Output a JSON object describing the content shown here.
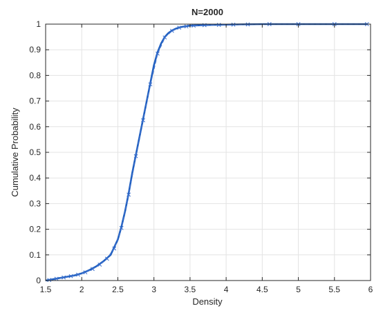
{
  "chart_data": {
    "type": "line",
    "title": "N=2000",
    "xlabel": "Density",
    "ylabel": "Cumulative Probability",
    "xlim": [
      1.5,
      6
    ],
    "ylim": [
      0,
      1
    ],
    "xticks": [
      1.5,
      2,
      2.5,
      3,
      3.5,
      4,
      4.5,
      5,
      5.5,
      6
    ],
    "xtick_labels": [
      "1.5",
      "2",
      "2.5",
      "3",
      "3.5",
      "4",
      "4.5",
      "5",
      "5.5",
      "6"
    ],
    "yticks": [
      0,
      0.1,
      0.2,
      0.3,
      0.4,
      0.5,
      0.6,
      0.7,
      0.8,
      0.9,
      1
    ],
    "ytick_labels": [
      "0",
      "0.1",
      "0.2",
      "0.3",
      "0.4",
      "0.5",
      "0.6",
      "0.7",
      "0.8",
      "0.9",
      "1"
    ],
    "grid": true,
    "legend": "none",
    "colors": {
      "line": "#1f5fbf",
      "marker": "#3a6fcc",
      "grid": "#e3e3e3",
      "axis": "#262626"
    },
    "series": [
      {
        "style": "solid",
        "x": [
          1.5,
          1.6,
          1.7,
          1.8,
          1.9,
          2.0,
          2.1,
          2.2,
          2.3,
          2.4,
          2.5,
          2.55,
          2.6,
          2.65,
          2.7,
          2.75,
          2.8,
          2.85,
          2.9,
          2.95,
          3.0,
          3.05,
          3.1,
          3.15,
          3.2,
          3.25,
          3.3,
          3.35,
          3.4,
          3.45,
          3.5,
          3.6,
          3.7,
          3.8,
          4.0,
          4.2,
          4.5,
          5.0,
          5.5,
          5.95
        ],
        "y": [
          0.0,
          0.005,
          0.01,
          0.015,
          0.02,
          0.028,
          0.04,
          0.055,
          0.075,
          0.1,
          0.16,
          0.21,
          0.27,
          0.34,
          0.42,
          0.49,
          0.56,
          0.63,
          0.7,
          0.77,
          0.84,
          0.89,
          0.925,
          0.95,
          0.965,
          0.975,
          0.982,
          0.987,
          0.99,
          0.992,
          0.994,
          0.995,
          0.996,
          0.997,
          0.998,
          0.999,
          1.0,
          1.0,
          1.0,
          1.0
        ]
      },
      {
        "style": "dashed-markers",
        "x": [
          1.55,
          1.65,
          1.75,
          1.85,
          1.95,
          2.05,
          2.15,
          2.25,
          2.35,
          2.45,
          2.55,
          2.65,
          2.75,
          2.85,
          2.95,
          3.05,
          3.15,
          3.25,
          3.35,
          3.45,
          3.55,
          3.7,
          3.9,
          4.1,
          4.3,
          4.6,
          5.0,
          5.5,
          5.95
        ],
        "y": [
          0.002,
          0.007,
          0.012,
          0.017,
          0.023,
          0.032,
          0.045,
          0.062,
          0.085,
          0.125,
          0.205,
          0.335,
          0.485,
          0.625,
          0.765,
          0.885,
          0.948,
          0.974,
          0.986,
          0.991,
          0.994,
          0.996,
          0.997,
          0.998,
          0.999,
          1.0,
          1.0,
          1.0,
          1.0
        ]
      }
    ]
  }
}
